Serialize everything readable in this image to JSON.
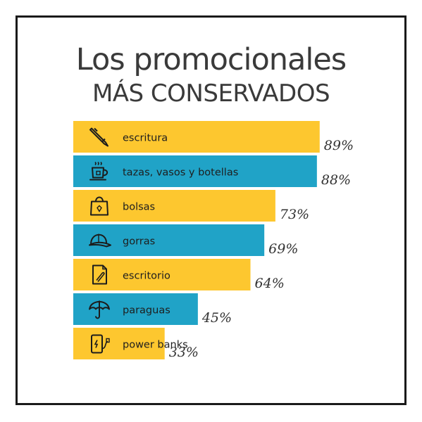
{
  "title_line1": "Los promocionales",
  "title_line2": "MÁS CONSERVADOS",
  "chart_data": {
    "type": "bar",
    "orientation": "horizontal",
    "categories": [
      "escritura",
      "tazas, vasos y botellas",
      "bolsas",
      "gorras",
      "escritorio",
      "paraguas",
      "power banks"
    ],
    "values": [
      89,
      88,
      73,
      69,
      64,
      45,
      33
    ],
    "value_labels": [
      "89%",
      "88%",
      "73%",
      "69%",
      "64%",
      "45%",
      "33%"
    ],
    "unit": "%",
    "icons": [
      "pen-icon",
      "mug-icon",
      "bag-icon",
      "cap-icon",
      "document-icon",
      "umbrella-icon",
      "power-bank-icon"
    ],
    "colors": [
      "#FDC72F",
      "#20A3C7",
      "#FDC72F",
      "#20A3C7",
      "#FDC72F",
      "#20A3C7",
      "#FDC72F"
    ]
  }
}
